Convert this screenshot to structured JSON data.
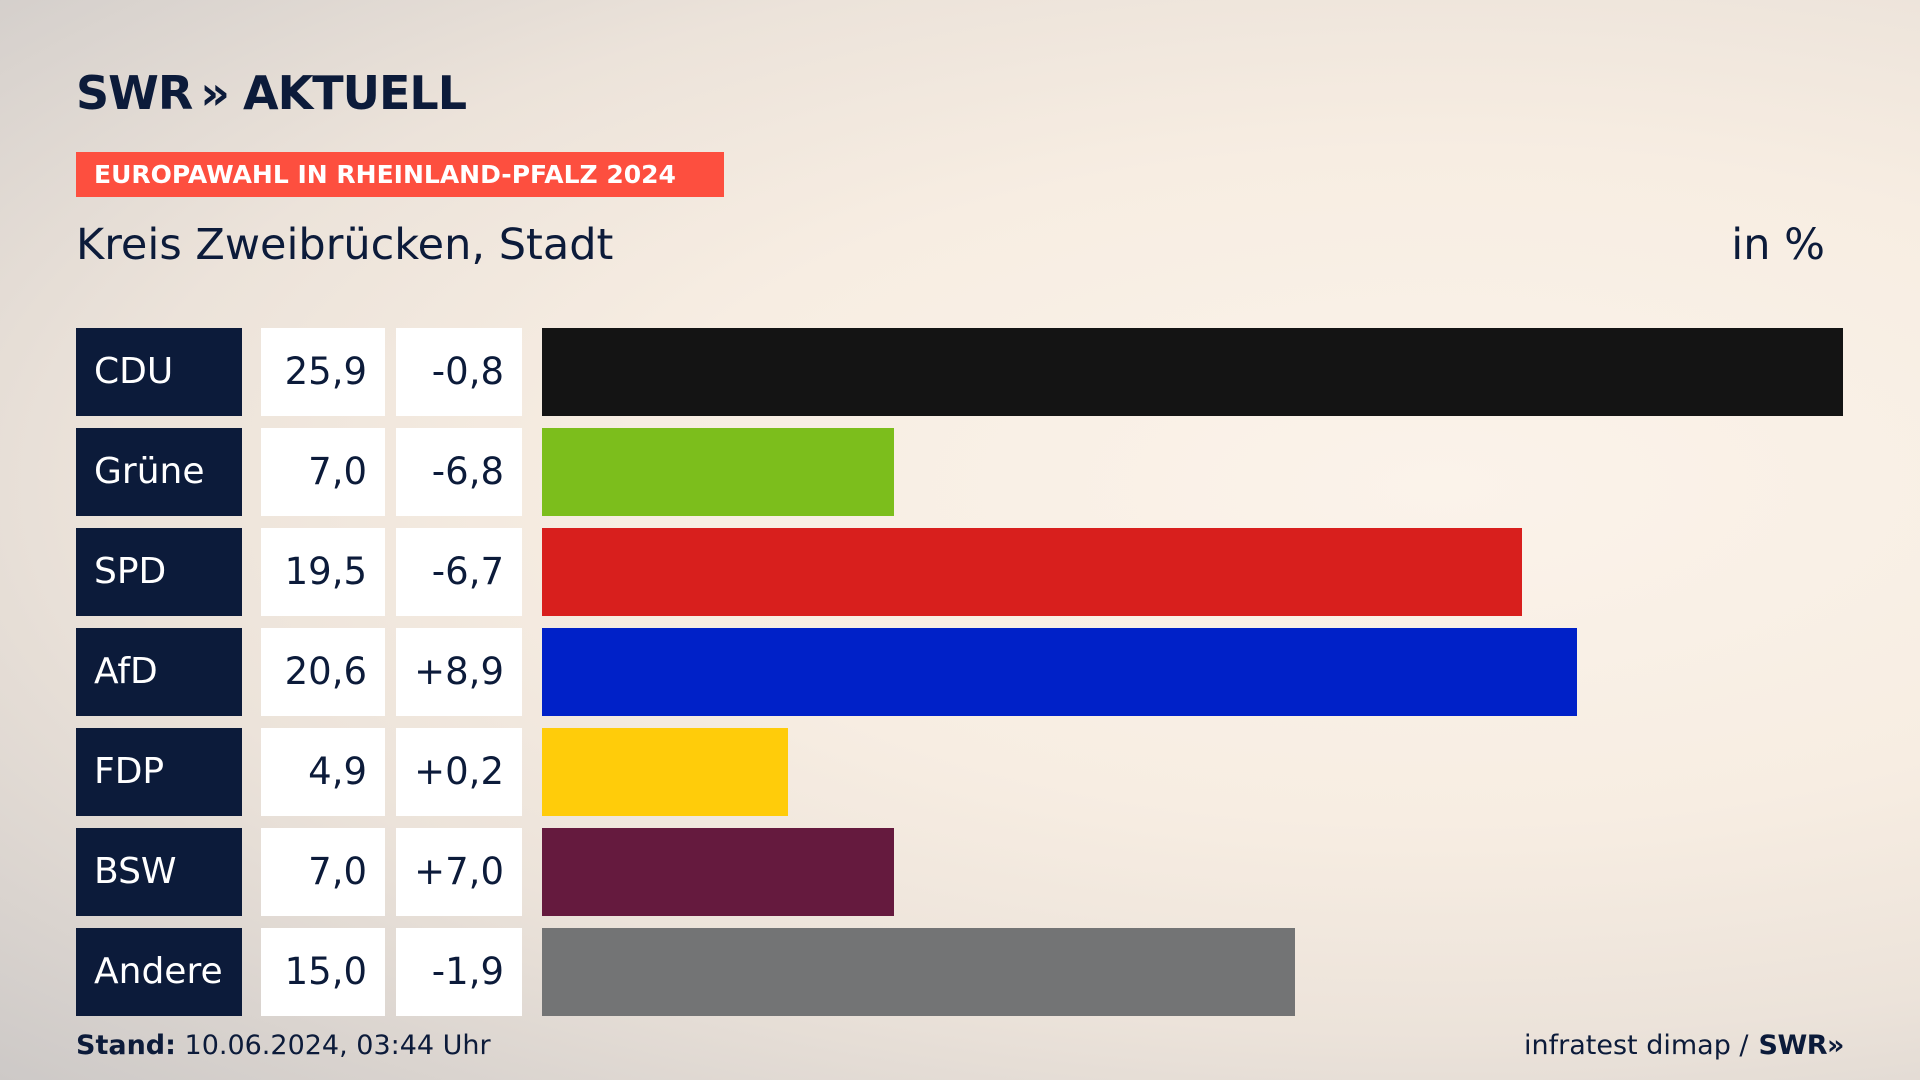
{
  "header": {
    "logo_brand": "SWR",
    "logo_arrows": "»",
    "logo_product": "AKTUELL"
  },
  "banner": {
    "text": "EUROPAWAHL IN RHEINLAND-PFALZ 2024",
    "color": "#fd4f3f"
  },
  "subtitle": "Kreis Zweibrücken, Stadt",
  "unit": "in %",
  "chart_data": {
    "type": "bar",
    "orientation": "horizontal",
    "categories": [
      "CDU",
      "Grüne",
      "SPD",
      "AfD",
      "FDP",
      "BSW",
      "Andere"
    ],
    "values": [
      25.9,
      7.0,
      19.5,
      20.6,
      4.9,
      7.0,
      15.0
    ],
    "value_labels": [
      "25,9",
      "7,0",
      "19,5",
      "20,6",
      "4,9",
      "7,0",
      "15,0"
    ],
    "diff_labels": [
      "-0,8",
      "-6,8",
      "-6,7",
      "+8,9",
      "+0,2",
      "+7,0",
      "-1,9"
    ],
    "colors": [
      "#141414",
      "#7cbe1c",
      "#d81f1d",
      "#0021c8",
      "#ffcc0a",
      "#651a3e",
      "#737475"
    ],
    "xlim": [
      0,
      25.9
    ]
  },
  "footer": {
    "stand_label": "Stand:",
    "stand_value": "10.06.2024, 03:44 Uhr",
    "source": "infratest dimap /",
    "source_logo": "SWR»"
  }
}
